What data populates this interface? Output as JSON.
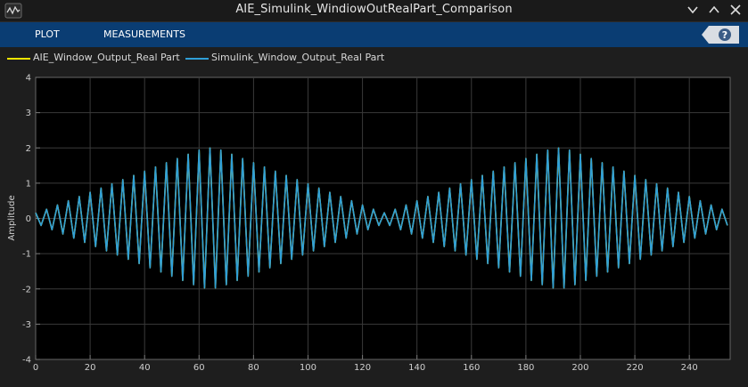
{
  "window": {
    "title": "AIE_Simulink_WindiowOutRealPart_Comparison"
  },
  "toolstrip": {
    "tabs": [
      {
        "label": "PLOT"
      },
      {
        "label": "MEASUREMENTS"
      }
    ],
    "help_icon": "help-icon"
  },
  "legend": {
    "items": [
      {
        "label": "AIE_Window_Output_Real Part",
        "color": "#f2e600"
      },
      {
        "label": "Simulink_Window_Output_Real Part",
        "color": "#2f9fd8"
      }
    ]
  },
  "colors": {
    "background": "#000000",
    "grid": "#3a3a3a",
    "axis_text": "#cfcfcf",
    "toolstrip": "#0a3d73"
  },
  "chart_data": {
    "type": "line",
    "title": "",
    "xlabel": "",
    "ylabel": "Amplitude",
    "xlim": [
      0,
      255
    ],
    "ylim": [
      -4,
      4
    ],
    "xticks": [
      0,
      20,
      40,
      60,
      80,
      100,
      120,
      140,
      160,
      180,
      200,
      220,
      240
    ],
    "yticks": [
      4,
      3,
      2,
      1,
      0,
      -1,
      -2,
      -3,
      -4
    ],
    "grid": true,
    "legend_position": "top-left",
    "series": [
      {
        "name": "AIE_Window_Output_Real Part",
        "values": [
          0.16,
          -0.2,
          0.26,
          -0.32,
          0.38,
          -0.44,
          0.5,
          -0.56,
          0.62,
          -0.68,
          0.74,
          -0.8,
          0.86,
          -0.92,
          0.98,
          -1.04,
          1.1,
          -1.16,
          1.22,
          -1.28,
          1.34,
          -1.4,
          1.46,
          -1.52,
          1.58,
          -1.64,
          1.7,
          -1.76,
          1.82,
          -1.88,
          1.94,
          -1.97,
          2.0,
          -1.97,
          1.94,
          -1.88,
          1.82,
          -1.76,
          1.7,
          -1.64,
          1.58,
          -1.52,
          1.46,
          -1.4,
          1.34,
          -1.28,
          1.22,
          -1.16,
          1.1,
          -1.04,
          0.98,
          -0.92,
          0.86,
          -0.8,
          0.74,
          -0.68,
          0.62,
          -0.56,
          0.5,
          -0.44,
          0.38,
          -0.32,
          0.26,
          -0.2,
          0.16,
          -0.2,
          0.26,
          -0.32,
          0.38,
          -0.44,
          0.5,
          -0.56,
          0.62,
          -0.68,
          0.74,
          -0.8,
          0.86,
          -0.92,
          0.98,
          -1.04,
          1.1,
          -1.16,
          1.22,
          -1.28,
          1.34,
          -1.4,
          1.46,
          -1.52,
          1.58,
          -1.64,
          1.7,
          -1.76,
          1.82,
          -1.88,
          1.94,
          -1.97,
          2.0,
          -1.97,
          1.94,
          -1.88,
          1.82,
          -1.76,
          1.7,
          -1.64,
          1.58,
          -1.52,
          1.46,
          -1.4,
          1.34,
          -1.28,
          1.22,
          -1.16,
          1.1,
          -1.04,
          0.98,
          -0.92,
          0.86,
          -0.8,
          0.74,
          -0.68,
          0.62,
          -0.56,
          0.5,
          -0.44,
          0.38,
          -0.32,
          0.26,
          -0.2
        ]
      },
      {
        "name": "Simulink_Window_Output_Real Part",
        "values": [
          0.16,
          -0.2,
          0.26,
          -0.32,
          0.38,
          -0.44,
          0.5,
          -0.56,
          0.62,
          -0.68,
          0.74,
          -0.8,
          0.86,
          -0.92,
          0.98,
          -1.04,
          1.1,
          -1.16,
          1.22,
          -1.28,
          1.34,
          -1.4,
          1.46,
          -1.52,
          1.58,
          -1.64,
          1.7,
          -1.76,
          1.82,
          -1.88,
          1.94,
          -1.97,
          2.0,
          -1.97,
          1.94,
          -1.88,
          1.82,
          -1.76,
          1.7,
          -1.64,
          1.58,
          -1.52,
          1.46,
          -1.4,
          1.34,
          -1.28,
          1.22,
          -1.16,
          1.1,
          -1.04,
          0.98,
          -0.92,
          0.86,
          -0.8,
          0.74,
          -0.68,
          0.62,
          -0.56,
          0.5,
          -0.44,
          0.38,
          -0.32,
          0.26,
          -0.2,
          0.16,
          -0.2,
          0.26,
          -0.32,
          0.38,
          -0.44,
          0.5,
          -0.56,
          0.62,
          -0.68,
          0.74,
          -0.8,
          0.86,
          -0.92,
          0.98,
          -1.04,
          1.1,
          -1.16,
          1.22,
          -1.28,
          1.34,
          -1.4,
          1.46,
          -1.52,
          1.58,
          -1.64,
          1.7,
          -1.76,
          1.82,
          -1.88,
          1.94,
          -1.97,
          2.0,
          -1.97,
          1.94,
          -1.88,
          1.82,
          -1.76,
          1.7,
          -1.64,
          1.58,
          -1.52,
          1.46,
          -1.4,
          1.34,
          -1.28,
          1.22,
          -1.16,
          1.1,
          -1.04,
          0.98,
          -0.92,
          0.86,
          -0.8,
          0.74,
          -0.68,
          0.62,
          -0.56,
          0.5,
          -0.44,
          0.38,
          -0.32,
          0.26,
          -0.2
        ]
      }
    ]
  }
}
